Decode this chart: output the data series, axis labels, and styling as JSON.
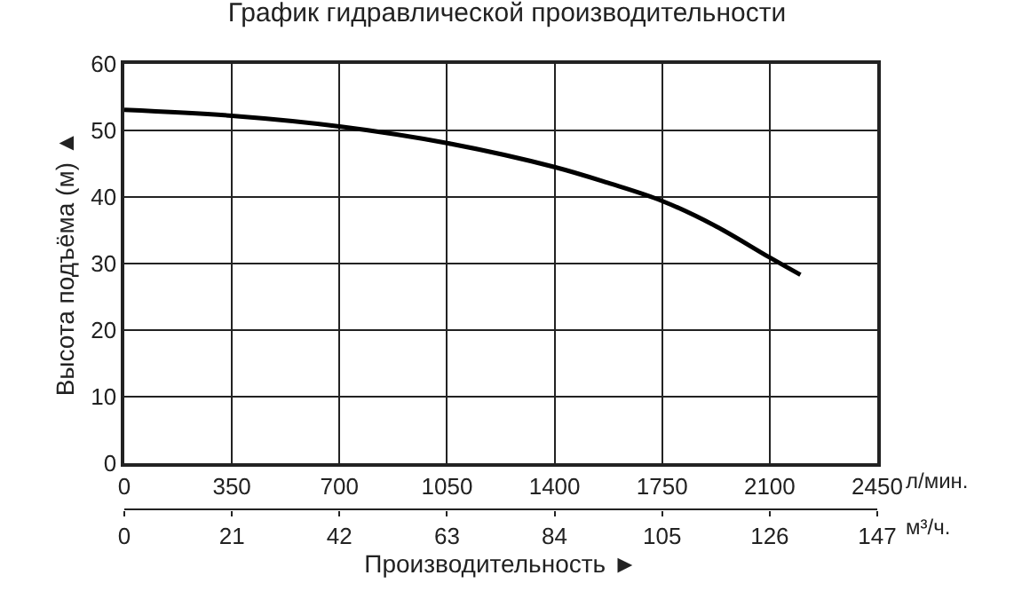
{
  "chart_data": {
    "type": "line",
    "title": "График гидравлической производительности",
    "xlabel": "Производительность ►",
    "ylabel": "Высота подъёма (м) ▲",
    "x": [
      0,
      350,
      700,
      1050,
      1400,
      1575,
      1750,
      1925,
      2100,
      2200
    ],
    "series": [
      {
        "color": "#000000",
        "values": [
          53.1,
          52.2,
          50.6,
          48.1,
          44.5,
          42.1,
          39.4,
          35.6,
          30.9,
          28.3
        ]
      }
    ],
    "xlim": [
      0,
      2450
    ],
    "xticks": [
      0,
      350,
      700,
      1050,
      1400,
      1750,
      2100,
      2450
    ],
    "x2lim": [
      0,
      147
    ],
    "x2ticks": [
      0,
      21,
      42,
      63,
      84,
      105,
      126,
      147
    ],
    "ylim": [
      0,
      60
    ],
    "yticks": [
      0,
      10,
      20,
      30,
      40,
      50,
      60
    ],
    "annotations": [
      "л/мин.",
      "м³/ч."
    ],
    "grid": true,
    "marker": "none",
    "line_style": "solid"
  }
}
